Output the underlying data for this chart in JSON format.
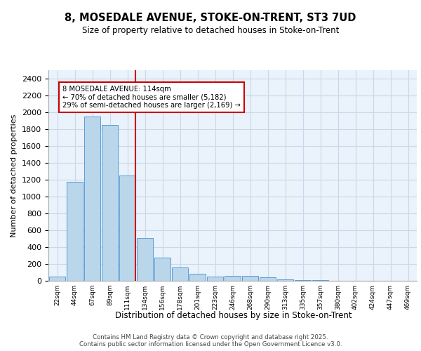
{
  "title_line1": "8, MOSEDALE AVENUE, STOKE-ON-TRENT, ST3 7UD",
  "title_line2": "Size of property relative to detached houses in Stoke-on-Trent",
  "xlabel": "Distribution of detached houses by size in Stoke-on-Trent",
  "ylabel": "Number of detached properties",
  "categories": [
    "22sqm",
    "44sqm",
    "67sqm",
    "89sqm",
    "111sqm",
    "134sqm",
    "156sqm",
    "178sqm",
    "201sqm",
    "223sqm",
    "246sqm",
    "268sqm",
    "290sqm",
    "313sqm",
    "335sqm",
    "357sqm",
    "380sqm",
    "402sqm",
    "424sqm",
    "447sqm",
    "469sqm"
  ],
  "values": [
    50,
    1175,
    1950,
    1850,
    1250,
    510,
    275,
    155,
    80,
    50,
    55,
    58,
    38,
    18,
    10,
    5,
    3,
    2,
    1,
    1,
    1
  ],
  "bar_color": "#bad6eb",
  "bar_edge_color": "#5b9bd5",
  "grid_color": "#c8d8e8",
  "background_color": "#eaf2fb",
  "vline_x_index": 4,
  "vline_color": "#cc0000",
  "annotation_text": "8 MOSEDALE AVENUE: 114sqm\n← 70% of detached houses are smaller (5,182)\n29% of semi-detached houses are larger (2,169) →",
  "annotation_box_color": "white",
  "annotation_box_edge_color": "#cc0000",
  "footer_line1": "Contains HM Land Registry data © Crown copyright and database right 2025.",
  "footer_line2": "Contains public sector information licensed under the Open Government Licence v3.0.",
  "ylim": [
    0,
    2500
  ],
  "yticks": [
    0,
    200,
    400,
    600,
    800,
    1000,
    1200,
    1400,
    1600,
    1800,
    2000,
    2200,
    2400
  ]
}
